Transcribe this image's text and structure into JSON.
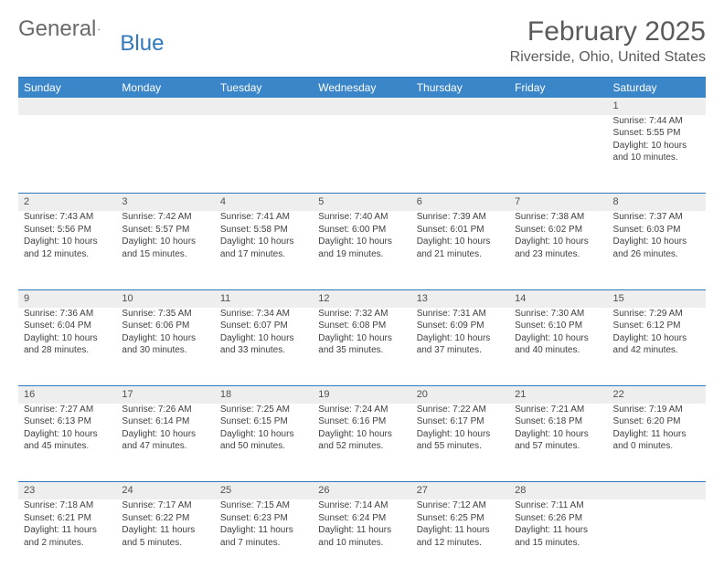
{
  "logo": {
    "text1": "General",
    "text2": "Blue"
  },
  "title": "February 2025",
  "location": "Riverside, Ohio, United States",
  "weekdays": [
    "Sunday",
    "Monday",
    "Tuesday",
    "Wednesday",
    "Thursday",
    "Friday",
    "Saturday"
  ],
  "colors": {
    "header_bg": "#3b86c8",
    "border": "#2f78bd",
    "daynum_bg": "#eeeeee",
    "text": "#404040"
  },
  "weeks": [
    [
      null,
      null,
      null,
      null,
      null,
      null,
      {
        "n": "1",
        "sunrise": "Sunrise: 7:44 AM",
        "sunset": "Sunset: 5:55 PM",
        "day": "Daylight: 10 hours and 10 minutes."
      }
    ],
    [
      {
        "n": "2",
        "sunrise": "Sunrise: 7:43 AM",
        "sunset": "Sunset: 5:56 PM",
        "day": "Daylight: 10 hours and 12 minutes."
      },
      {
        "n": "3",
        "sunrise": "Sunrise: 7:42 AM",
        "sunset": "Sunset: 5:57 PM",
        "day": "Daylight: 10 hours and 15 minutes."
      },
      {
        "n": "4",
        "sunrise": "Sunrise: 7:41 AM",
        "sunset": "Sunset: 5:58 PM",
        "day": "Daylight: 10 hours and 17 minutes."
      },
      {
        "n": "5",
        "sunrise": "Sunrise: 7:40 AM",
        "sunset": "Sunset: 6:00 PM",
        "day": "Daylight: 10 hours and 19 minutes."
      },
      {
        "n": "6",
        "sunrise": "Sunrise: 7:39 AM",
        "sunset": "Sunset: 6:01 PM",
        "day": "Daylight: 10 hours and 21 minutes."
      },
      {
        "n": "7",
        "sunrise": "Sunrise: 7:38 AM",
        "sunset": "Sunset: 6:02 PM",
        "day": "Daylight: 10 hours and 23 minutes."
      },
      {
        "n": "8",
        "sunrise": "Sunrise: 7:37 AM",
        "sunset": "Sunset: 6:03 PM",
        "day": "Daylight: 10 hours and 26 minutes."
      }
    ],
    [
      {
        "n": "9",
        "sunrise": "Sunrise: 7:36 AM",
        "sunset": "Sunset: 6:04 PM",
        "day": "Daylight: 10 hours and 28 minutes."
      },
      {
        "n": "10",
        "sunrise": "Sunrise: 7:35 AM",
        "sunset": "Sunset: 6:06 PM",
        "day": "Daylight: 10 hours and 30 minutes."
      },
      {
        "n": "11",
        "sunrise": "Sunrise: 7:34 AM",
        "sunset": "Sunset: 6:07 PM",
        "day": "Daylight: 10 hours and 33 minutes."
      },
      {
        "n": "12",
        "sunrise": "Sunrise: 7:32 AM",
        "sunset": "Sunset: 6:08 PM",
        "day": "Daylight: 10 hours and 35 minutes."
      },
      {
        "n": "13",
        "sunrise": "Sunrise: 7:31 AM",
        "sunset": "Sunset: 6:09 PM",
        "day": "Daylight: 10 hours and 37 minutes."
      },
      {
        "n": "14",
        "sunrise": "Sunrise: 7:30 AM",
        "sunset": "Sunset: 6:10 PM",
        "day": "Daylight: 10 hours and 40 minutes."
      },
      {
        "n": "15",
        "sunrise": "Sunrise: 7:29 AM",
        "sunset": "Sunset: 6:12 PM",
        "day": "Daylight: 10 hours and 42 minutes."
      }
    ],
    [
      {
        "n": "16",
        "sunrise": "Sunrise: 7:27 AM",
        "sunset": "Sunset: 6:13 PM",
        "day": "Daylight: 10 hours and 45 minutes."
      },
      {
        "n": "17",
        "sunrise": "Sunrise: 7:26 AM",
        "sunset": "Sunset: 6:14 PM",
        "day": "Daylight: 10 hours and 47 minutes."
      },
      {
        "n": "18",
        "sunrise": "Sunrise: 7:25 AM",
        "sunset": "Sunset: 6:15 PM",
        "day": "Daylight: 10 hours and 50 minutes."
      },
      {
        "n": "19",
        "sunrise": "Sunrise: 7:24 AM",
        "sunset": "Sunset: 6:16 PM",
        "day": "Daylight: 10 hours and 52 minutes."
      },
      {
        "n": "20",
        "sunrise": "Sunrise: 7:22 AM",
        "sunset": "Sunset: 6:17 PM",
        "day": "Daylight: 10 hours and 55 minutes."
      },
      {
        "n": "21",
        "sunrise": "Sunrise: 7:21 AM",
        "sunset": "Sunset: 6:18 PM",
        "day": "Daylight: 10 hours and 57 minutes."
      },
      {
        "n": "22",
        "sunrise": "Sunrise: 7:19 AM",
        "sunset": "Sunset: 6:20 PM",
        "day": "Daylight: 11 hours and 0 minutes."
      }
    ],
    [
      {
        "n": "23",
        "sunrise": "Sunrise: 7:18 AM",
        "sunset": "Sunset: 6:21 PM",
        "day": "Daylight: 11 hours and 2 minutes."
      },
      {
        "n": "24",
        "sunrise": "Sunrise: 7:17 AM",
        "sunset": "Sunset: 6:22 PM",
        "day": "Daylight: 11 hours and 5 minutes."
      },
      {
        "n": "25",
        "sunrise": "Sunrise: 7:15 AM",
        "sunset": "Sunset: 6:23 PM",
        "day": "Daylight: 11 hours and 7 minutes."
      },
      {
        "n": "26",
        "sunrise": "Sunrise: 7:14 AM",
        "sunset": "Sunset: 6:24 PM",
        "day": "Daylight: 11 hours and 10 minutes."
      },
      {
        "n": "27",
        "sunrise": "Sunrise: 7:12 AM",
        "sunset": "Sunset: 6:25 PM",
        "day": "Daylight: 11 hours and 12 minutes."
      },
      {
        "n": "28",
        "sunrise": "Sunrise: 7:11 AM",
        "sunset": "Sunset: 6:26 PM",
        "day": "Daylight: 11 hours and 15 minutes."
      },
      null
    ]
  ]
}
